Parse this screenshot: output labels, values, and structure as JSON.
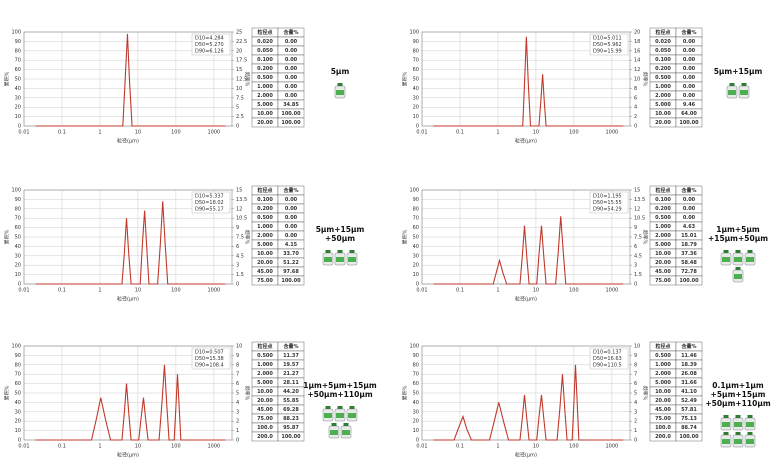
{
  "chart_data": [
    {
      "type": "line",
      "xscale": "log",
      "grid": true,
      "xlabel": "粒径(μm)",
      "ylabel": "累积%",
      "y2label": "频率%",
      "xlim": [
        0.01,
        3000
      ],
      "xticks": [
        0.01,
        0.1,
        1,
        10,
        100,
        1000
      ],
      "ylim": [
        0,
        100
      ],
      "yticks": [
        0,
        10,
        20,
        30,
        40,
        50,
        60,
        70,
        80,
        90,
        100
      ],
      "y2lim": [
        0,
        25
      ],
      "y2ticks": [
        0,
        2.5,
        5,
        7.5,
        10,
        12.5,
        15,
        17.5,
        20,
        22.5,
        25
      ],
      "annotations": [
        "D10=4.284",
        "D50=5.270",
        "D90=6.126"
      ],
      "series": [
        {
          "color": "#c0392b",
          "axis": "y2",
          "x": [
            0.02,
            4.0,
            4.6,
            5.3,
            6.0,
            7.0,
            2000
          ],
          "values": [
            0,
            0,
            12,
            24.5,
            12,
            0,
            0
          ]
        }
      ],
      "table": {
        "header": [
          "粒径点",
          "含量%"
        ],
        "rows": [
          [
            "0.020",
            "0.00"
          ],
          [
            "0.050",
            "0.00"
          ],
          [
            "0.100",
            "0.00"
          ],
          [
            "0.200",
            "0.00"
          ],
          [
            "0.500",
            "0.00"
          ],
          [
            "1.000",
            "0.00"
          ],
          [
            "2.000",
            "0.00"
          ],
          [
            "5.000",
            "34.85"
          ],
          [
            "10.00",
            "100.00"
          ],
          [
            "20.00",
            "100.00"
          ]
        ]
      },
      "product_label": [
        "5μm"
      ]
    },
    {
      "type": "line",
      "xscale": "log",
      "grid": true,
      "xlabel": "粒径(μm)",
      "ylabel": "累积%",
      "y2label": "频率%",
      "xlim": [
        0.01,
        3000
      ],
      "xticks": [
        0.01,
        0.1,
        1,
        10,
        100,
        1000
      ],
      "ylim": [
        0,
        100
      ],
      "yticks": [
        0,
        10,
        20,
        30,
        40,
        50,
        60,
        70,
        80,
        90,
        100
      ],
      "y2lim": [
        0,
        20
      ],
      "y2ticks": [
        0,
        2,
        4,
        6,
        8,
        10,
        12,
        14,
        16,
        18,
        20
      ],
      "annotations": [
        "D10=5.011",
        "D50=5.962",
        "D90=15.99"
      ],
      "series": [
        {
          "color": "#c0392b",
          "axis": "y2",
          "x": [
            0.02,
            4.5,
            5.0,
            5.6,
            6.3,
            7.2,
            12,
            13.5,
            15,
            16.5,
            18.5,
            2000
          ],
          "values": [
            0,
            0,
            9,
            19,
            9,
            0,
            0,
            5.5,
            11,
            5.5,
            0,
            0
          ]
        }
      ],
      "table": {
        "header": [
          "粒径点",
          "含量%"
        ],
        "rows": [
          [
            "0.020",
            "0.00"
          ],
          [
            "0.050",
            "0.00"
          ],
          [
            "0.100",
            "0.00"
          ],
          [
            "0.200",
            "0.00"
          ],
          [
            "0.500",
            "0.00"
          ],
          [
            "1.000",
            "0.00"
          ],
          [
            "2.000",
            "0.00"
          ],
          [
            "5.000",
            "9.46"
          ],
          [
            "10.00",
            "64.00"
          ],
          [
            "20.00",
            "100.00"
          ]
        ]
      },
      "product_label": [
        "5μm+15μm"
      ]
    },
    {
      "type": "line",
      "xscale": "log",
      "grid": true,
      "xlabel": "粒径(μm)",
      "ylabel": "累积%",
      "y2label": "频率%",
      "xlim": [
        0.01,
        3000
      ],
      "xticks": [
        0.01,
        0.1,
        1,
        10,
        100,
        1000
      ],
      "ylim": [
        0,
        100
      ],
      "yticks": [
        0,
        10,
        20,
        30,
        40,
        50,
        60,
        70,
        80,
        90,
        100
      ],
      "y2lim": [
        0,
        15
      ],
      "y2ticks": [
        0,
        1.5,
        3,
        4.5,
        6,
        7.5,
        9,
        10.5,
        12,
        13.5,
        15
      ],
      "annotations": [
        "D10=5.337",
        "D50=18.02",
        "D90=55.17"
      ],
      "series": [
        {
          "color": "#c0392b",
          "axis": "y2",
          "x": [
            0.02,
            3.8,
            4.4,
            5,
            5.7,
            6.6,
            11.5,
            13,
            15,
            17,
            19.5,
            33,
            39,
            45,
            52,
            61,
            2000
          ],
          "values": [
            0,
            0,
            5,
            10.5,
            5,
            0,
            0,
            6,
            11.7,
            6,
            0,
            0,
            6.5,
            13.2,
            6.5,
            0,
            0
          ]
        }
      ],
      "table": {
        "header": [
          "粒径点",
          "含量%"
        ],
        "rows": [
          [
            "0.100",
            "0.00"
          ],
          [
            "0.200",
            "0.00"
          ],
          [
            "0.500",
            "0.00"
          ],
          [
            "1.000",
            "0.00"
          ],
          [
            "2.000",
            "0.00"
          ],
          [
            "5.000",
            "4.15"
          ],
          [
            "10.00",
            "33.70"
          ],
          [
            "20.00",
            "51.22"
          ],
          [
            "45.00",
            "97.68"
          ],
          [
            "75.00",
            "100.00"
          ]
        ]
      },
      "product_label": [
        "5μm+15μm",
        "+50μm"
      ]
    },
    {
      "type": "line",
      "xscale": "log",
      "grid": true,
      "xlabel": "粒径(μm)",
      "ylabel": "累积%",
      "y2label": "频率%",
      "xlim": [
        0.01,
        3000
      ],
      "xticks": [
        0.01,
        0.1,
        1,
        10,
        100,
        1000
      ],
      "ylim": [
        0,
        100
      ],
      "yticks": [
        0,
        10,
        20,
        30,
        40,
        50,
        60,
        70,
        80,
        90,
        100
      ],
      "y2lim": [
        0,
        15
      ],
      "y2ticks": [
        0,
        1.5,
        3,
        4.5,
        6,
        7.5,
        9,
        10.5,
        12,
        13.5,
        15
      ],
      "annotations": [
        "D10=1.195",
        "D50=15.55",
        "D90=54.29"
      ],
      "series": [
        {
          "color": "#c0392b",
          "axis": "y2",
          "x": [
            0.02,
            0.75,
            0.9,
            1.1,
            1.35,
            1.7,
            3.8,
            4.4,
            5,
            5.7,
            6.6,
            10.5,
            12,
            14,
            16,
            18.5,
            33,
            39,
            45,
            52,
            61,
            2000
          ],
          "values": [
            0,
            0,
            1.8,
            3.75,
            1.8,
            0,
            0,
            4.6,
            9.3,
            4.6,
            0,
            0,
            4.6,
            9.3,
            4.6,
            0,
            0,
            5.4,
            10.8,
            5.4,
            0,
            0
          ]
        }
      ],
      "table": {
        "header": [
          "粒径点",
          "含量%"
        ],
        "rows": [
          [
            "0.100",
            "0.00"
          ],
          [
            "0.200",
            "0.00"
          ],
          [
            "0.500",
            "0.00"
          ],
          [
            "1.000",
            "4.63"
          ],
          [
            "2.000",
            "15.01"
          ],
          [
            "5.000",
            "18.79"
          ],
          [
            "10.00",
            "37.36"
          ],
          [
            "20.00",
            "58.48"
          ],
          [
            "45.00",
            "72.78"
          ],
          [
            "75.00",
            "100.00"
          ]
        ]
      },
      "product_label": [
        "1μm+5μm",
        "+15μm+50μm"
      ]
    },
    {
      "type": "line",
      "xscale": "log",
      "grid": true,
      "xlabel": "粒径(μm)",
      "ylabel": "累积%",
      "y2label": "频率%",
      "xlim": [
        0.01,
        3000
      ],
      "xticks": [
        0.01,
        0.1,
        1,
        10,
        100,
        1000
      ],
      "ylim": [
        0,
        100
      ],
      "yticks": [
        0,
        10,
        20,
        30,
        40,
        50,
        60,
        70,
        80,
        90,
        100
      ],
      "y2lim": [
        0,
        10
      ],
      "y2ticks": [
        0,
        1,
        2,
        3,
        4,
        5,
        6,
        7,
        8,
        9,
        10
      ],
      "annotations": [
        "D10=0.507",
        "D50=15.38",
        "D90=108.4"
      ],
      "series": [
        {
          "color": "#c0392b",
          "axis": "y2",
          "x": [
            0.02,
            0.6,
            0.8,
            1.05,
            1.4,
            1.9,
            3.8,
            4.4,
            5,
            5.7,
            6.6,
            10.5,
            12,
            14,
            16,
            18.5,
            36,
            43,
            50,
            57,
            66,
            90,
            100,
            110,
            122,
            135,
            2000
          ],
          "values": [
            0,
            0,
            2.2,
            4.5,
            2.2,
            0,
            0,
            3,
            6,
            3,
            0,
            0,
            2.2,
            4.5,
            2.2,
            0,
            0,
            4,
            8,
            4,
            0,
            0,
            3.5,
            7,
            3.5,
            0,
            0
          ]
        }
      ],
      "table": {
        "header": [
          "粒径点",
          "含量%"
        ],
        "rows": [
          [
            "0.500",
            "11.37"
          ],
          [
            "1.000",
            "19.57"
          ],
          [
            "2.000",
            "21.27"
          ],
          [
            "5.000",
            "28.11"
          ],
          [
            "10.00",
            "44.20"
          ],
          [
            "20.00",
            "55.85"
          ],
          [
            "45.00",
            "69.28"
          ],
          [
            "75.00",
            "88.23"
          ],
          [
            "100.0",
            "95.87"
          ],
          [
            "200.0",
            "100.00"
          ]
        ]
      },
      "product_label": [
        "1μm+5μm+15μm",
        "+50μm+110μm"
      ]
    },
    {
      "type": "line",
      "xscale": "log",
      "grid": true,
      "xlabel": "粒径(μm)",
      "ylabel": "累积%",
      "y2label": "频率%",
      "xlim": [
        0.01,
        3000
      ],
      "xticks": [
        0.01,
        0.1,
        1,
        10,
        100,
        1000
      ],
      "ylim": [
        0,
        100
      ],
      "yticks": [
        0,
        10,
        20,
        30,
        40,
        50,
        60,
        70,
        80,
        90,
        100
      ],
      "y2lim": [
        0,
        10
      ],
      "y2ticks": [
        0,
        1,
        2,
        3,
        4,
        5,
        6,
        7,
        8,
        9,
        10
      ],
      "annotations": [
        "D10=0.137",
        "D50=16.63",
        "D90=110.5"
      ],
      "series": [
        {
          "color": "#c0392b",
          "axis": "y2",
          "x": [
            0.02,
            0.07,
            0.09,
            0.12,
            0.15,
            0.2,
            0.6,
            0.8,
            1.05,
            1.4,
            1.9,
            3.8,
            4.4,
            5,
            5.7,
            6.6,
            10.5,
            12,
            14,
            16,
            18.5,
            36,
            43,
            50,
            57,
            66,
            90,
            100,
            110,
            122,
            135,
            2000
          ],
          "values": [
            0,
            0,
            1.2,
            2.5,
            1.2,
            0,
            0,
            2,
            4,
            2,
            0,
            0,
            2.4,
            4.8,
            2.4,
            0,
            0,
            2.4,
            4.8,
            2.4,
            0,
            0,
            3.5,
            7,
            3.5,
            0,
            0,
            4,
            8,
            4,
            0,
            0
          ]
        }
      ],
      "table": {
        "header": [
          "粒径点",
          "含量%"
        ],
        "rows": [
          [
            "0.500",
            "11.46"
          ],
          [
            "1.000",
            "18.39"
          ],
          [
            "2.000",
            "26.08"
          ],
          [
            "5.000",
            "31.66"
          ],
          [
            "10.00",
            "41.10"
          ],
          [
            "20.00",
            "52.49"
          ],
          [
            "45.00",
            "57.81"
          ],
          [
            "75.00",
            "75.13"
          ],
          [
            "100.0",
            "88.74"
          ],
          [
            "200.0",
            "100.00"
          ]
        ]
      },
      "product_label": [
        "0.1μm+1μm",
        "+5μm+15μm",
        "+50μm+110μm"
      ]
    }
  ]
}
